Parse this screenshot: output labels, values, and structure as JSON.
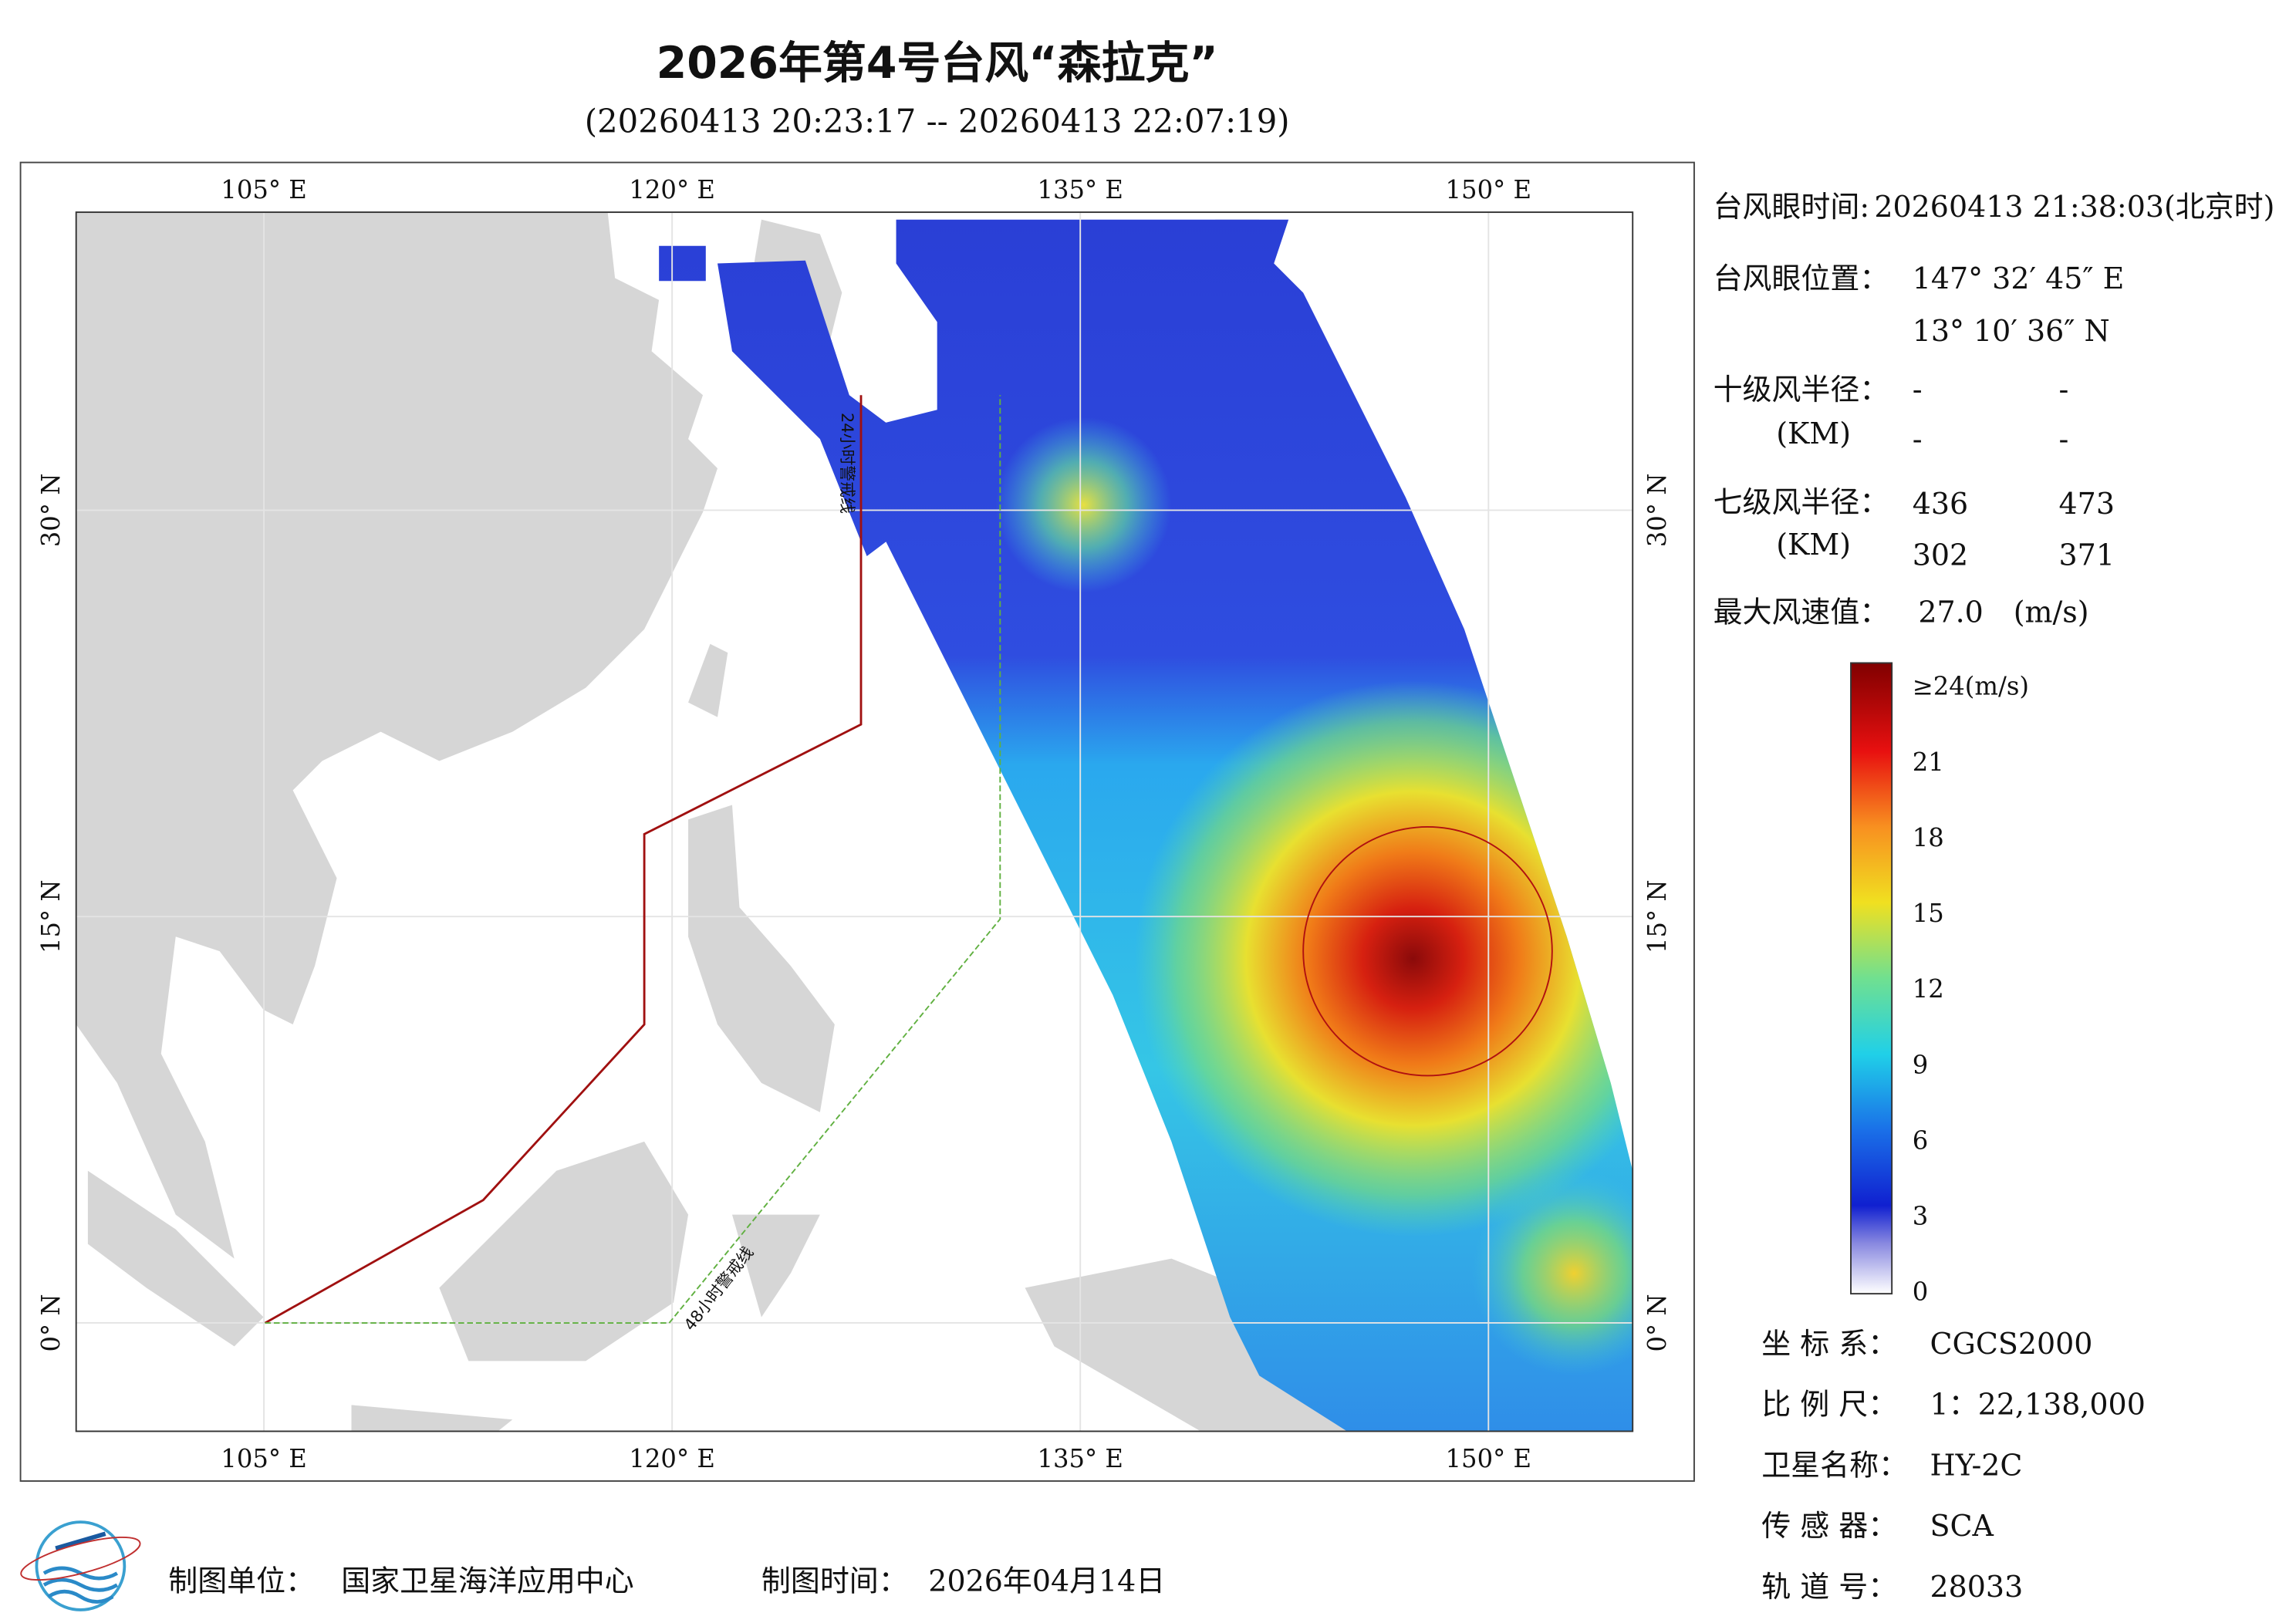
{
  "title": "2026年第4号台风“森拉克”",
  "subtitle": "(20260413 20:23:17 -- 20260413 22:07:19)",
  "map": {
    "xlim": [
      98.1,
      155.3
    ],
    "ylim": [
      -4,
      41
    ],
    "lon_ticks": [
      {
        "value": 105,
        "label": "105° E"
      },
      {
        "value": 120,
        "label": "120° E"
      },
      {
        "value": 135,
        "label": "135° E"
      },
      {
        "value": 150,
        "label": "150° E"
      }
    ],
    "lat_ticks": [
      {
        "value": 0,
        "label": "0° N"
      },
      {
        "value": 15,
        "label": "15° N"
      },
      {
        "value": 30,
        "label": "30° N"
      }
    ],
    "annotations": [
      "24小时警戒线",
      "48小时警戒线"
    ]
  },
  "info": {
    "eye_time": {
      "label": "台风眼时间:",
      "value": "20260413 21:38:03(北京时)"
    },
    "eye_position": {
      "label": "台风眼位置：",
      "lon": "147° 32′ 45″ E",
      "lat": "13° 10′ 36″ N"
    },
    "r10": {
      "label": "十级风半径：",
      "unit": "(KM)",
      "values": [
        "-",
        "-",
        "-",
        "-"
      ]
    },
    "r7": {
      "label": "七级风半径：",
      "unit": "(KM)",
      "values": [
        436,
        473,
        302,
        371
      ]
    },
    "max_wind": {
      "label": "最大风速值：",
      "value": "27.0",
      "unit": "(m/s)"
    }
  },
  "colorbar": {
    "lim": [
      0,
      25
    ],
    "ticks": [
      0,
      3,
      6,
      9,
      12,
      15,
      18,
      21,
      {
        "value": 24,
        "label": "≥24(m/s)"
      }
    ]
  },
  "details": [
    {
      "label": "坐 标 系：",
      "value": "CGCS2000"
    },
    {
      "label": "比 例 尺：",
      "value": "1：22,138,000"
    },
    {
      "label": "卫星名称：",
      "value": "HY-2C"
    },
    {
      "label": "传 感 器：",
      "value": "SCA"
    },
    {
      "label": "轨 道 号：",
      "value": "28033"
    }
  ],
  "footer": {
    "unit_label": "制图单位：",
    "unit": "国家卫星海洋应用中心",
    "time_label": "制图时间：",
    "time": "2026年04月14日"
  }
}
